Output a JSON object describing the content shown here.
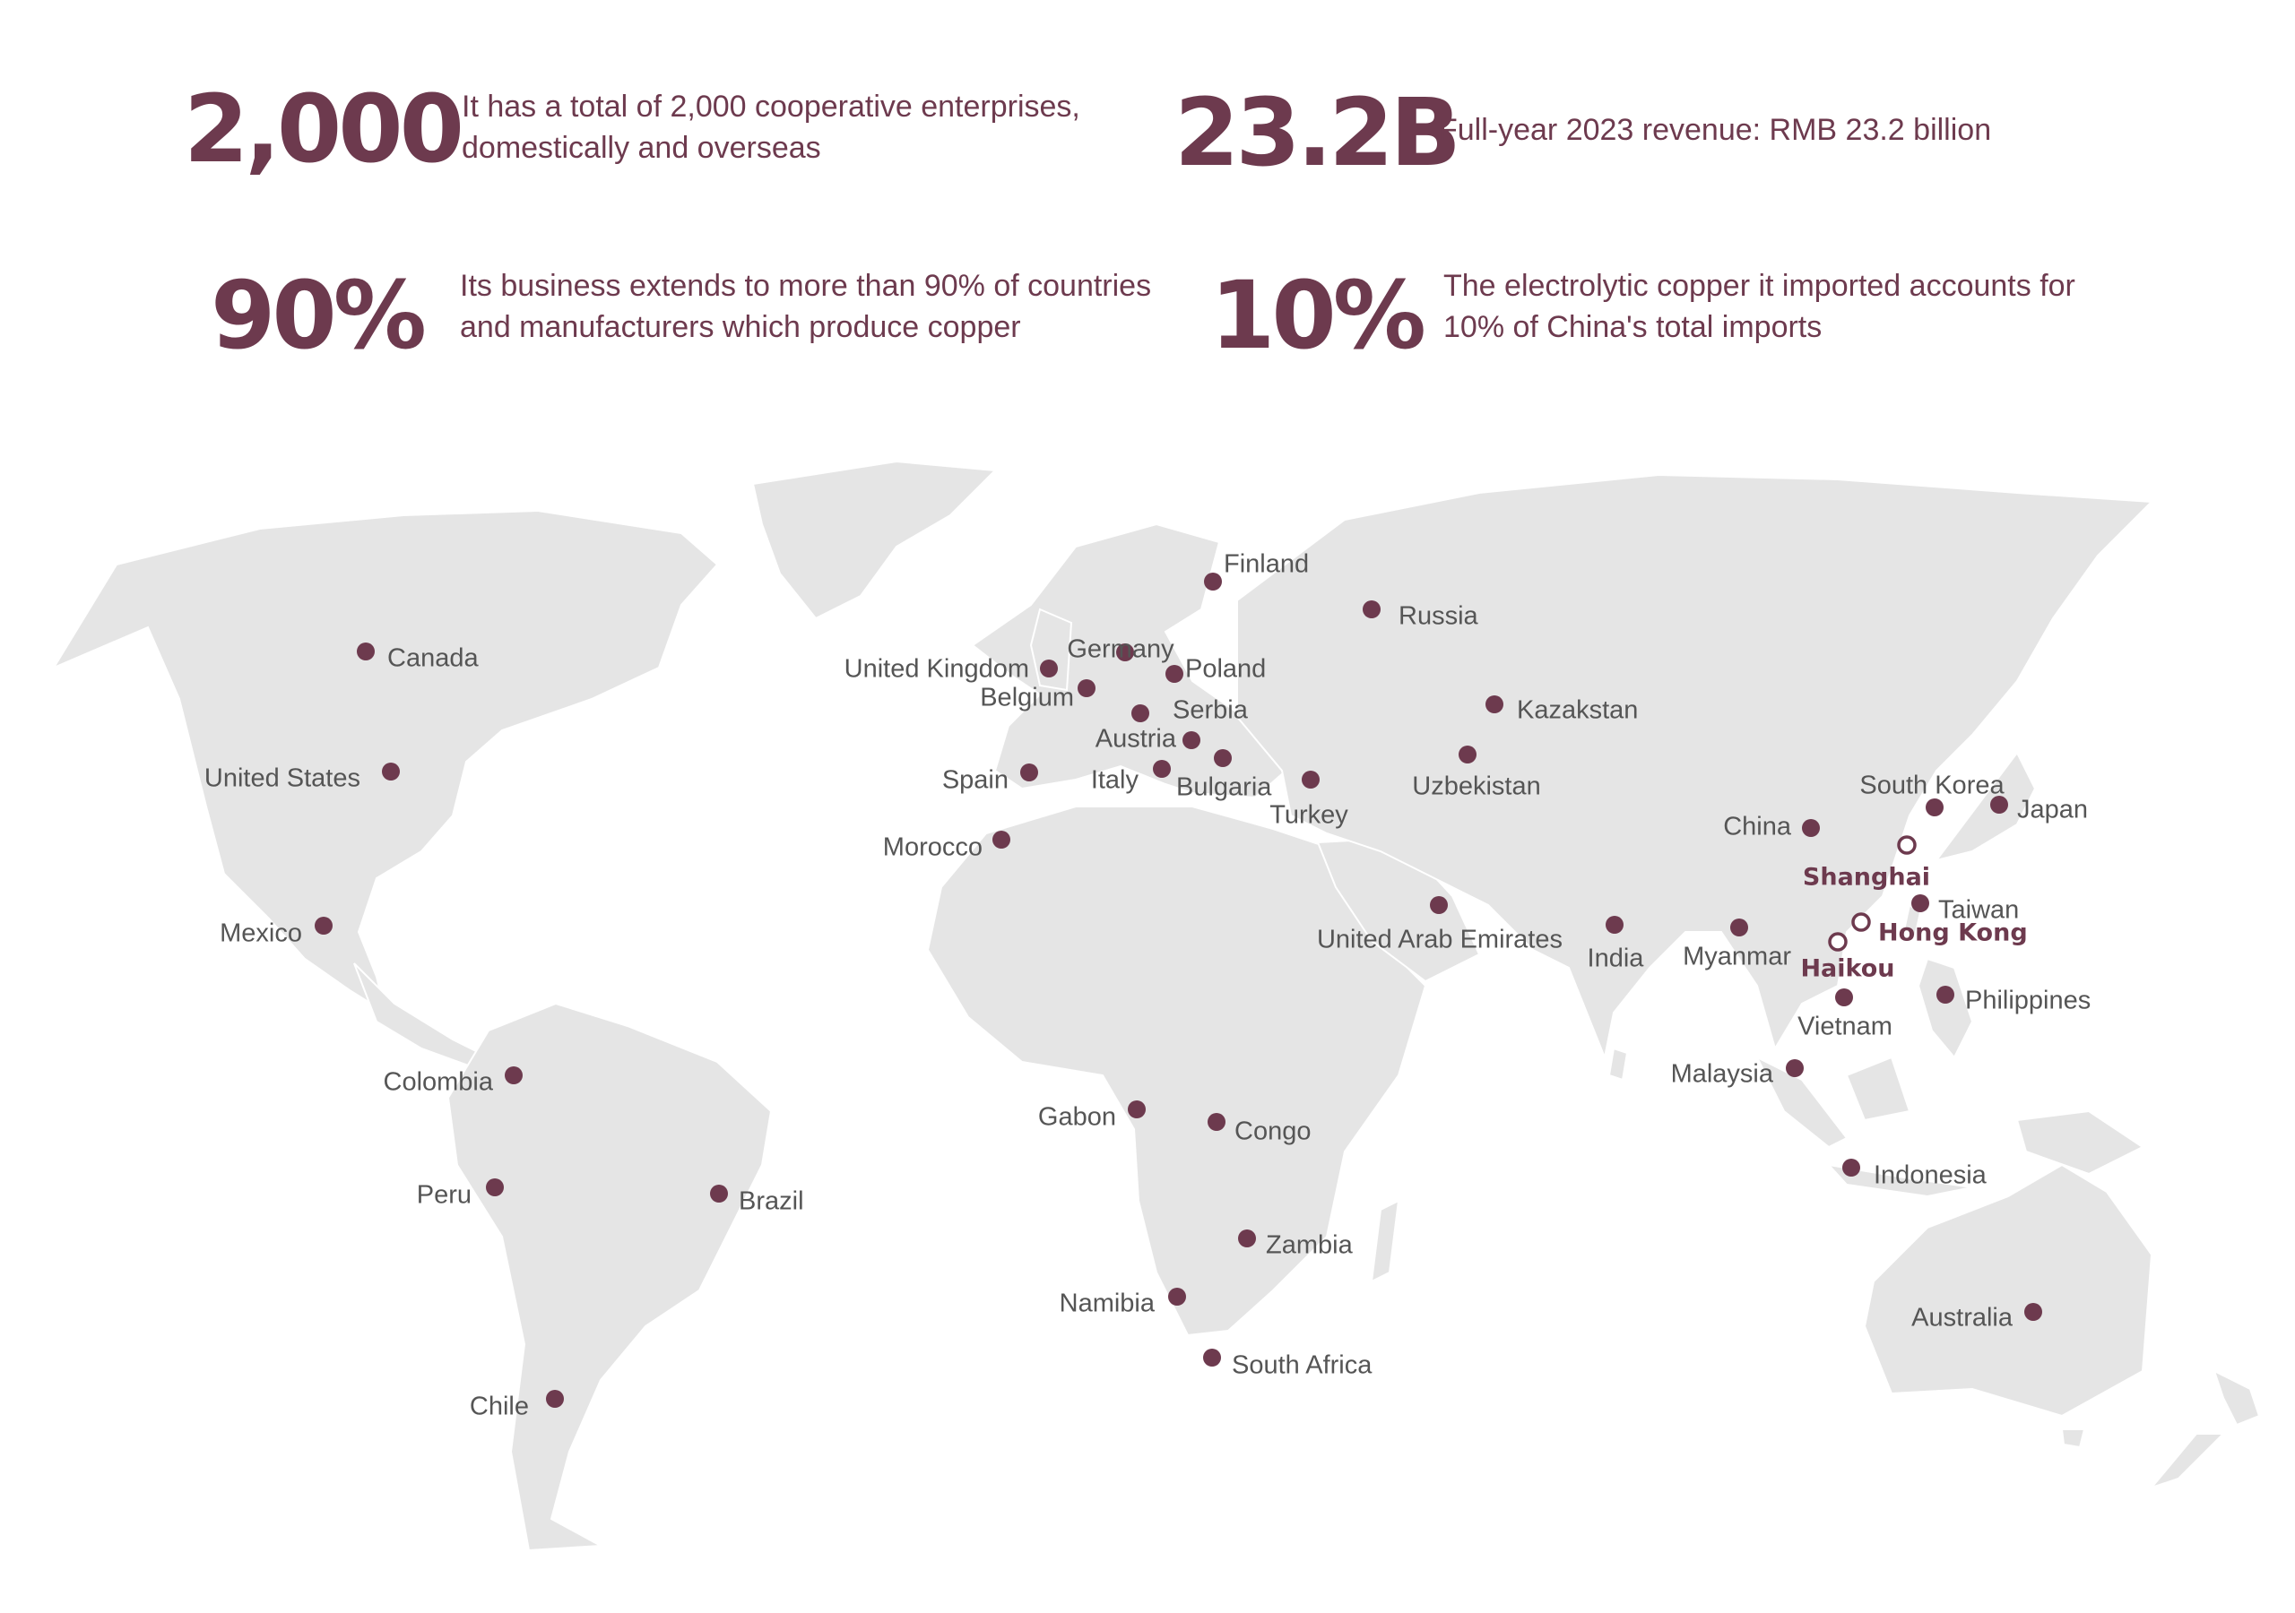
{
  "stats": [
    {
      "value": "2,000",
      "text": "It has a total of 2,000 cooperative enterprises, domestically and overseas"
    },
    {
      "value": "23.2B",
      "text": "Full-year 2023 revenue: RMB 23.2 billion"
    },
    {
      "value": "90%",
      "text": "Its business extends to more than 90% of countries and manufacturers which produce copper"
    },
    {
      "value": "10%",
      "text": "The electrolytic copper it imported accounts for 10% of China's total imports"
    }
  ],
  "colors": {
    "accent": "#6d3a4e",
    "land": "#e5e5e5",
    "label": "#555555"
  },
  "countries": [
    "Finland",
    "Russia",
    "Canada",
    "United Kingdom",
    "Germany",
    "Poland",
    "Belgium",
    "Serbia",
    "Kazakstan",
    "Austria",
    "Spain",
    "Italy",
    "Bulgaria",
    "Uzbekistan",
    "United States",
    "Turkey",
    "South Korea",
    "Japan",
    "China",
    "Morocco",
    "Taiwan",
    "Mexico",
    "United Arab Emirates",
    "India",
    "Myanmar",
    "Philippines",
    "Vietnam",
    "Malaysia",
    "Colombia",
    "Gabon",
    "Congo",
    "Indonesia",
    "Peru",
    "Brazil",
    "Zambia",
    "Namibia",
    "Australia",
    "South Africa",
    "Chile"
  ],
  "hubs": [
    "Shanghai",
    "Hong Kong",
    "Haikou"
  ]
}
